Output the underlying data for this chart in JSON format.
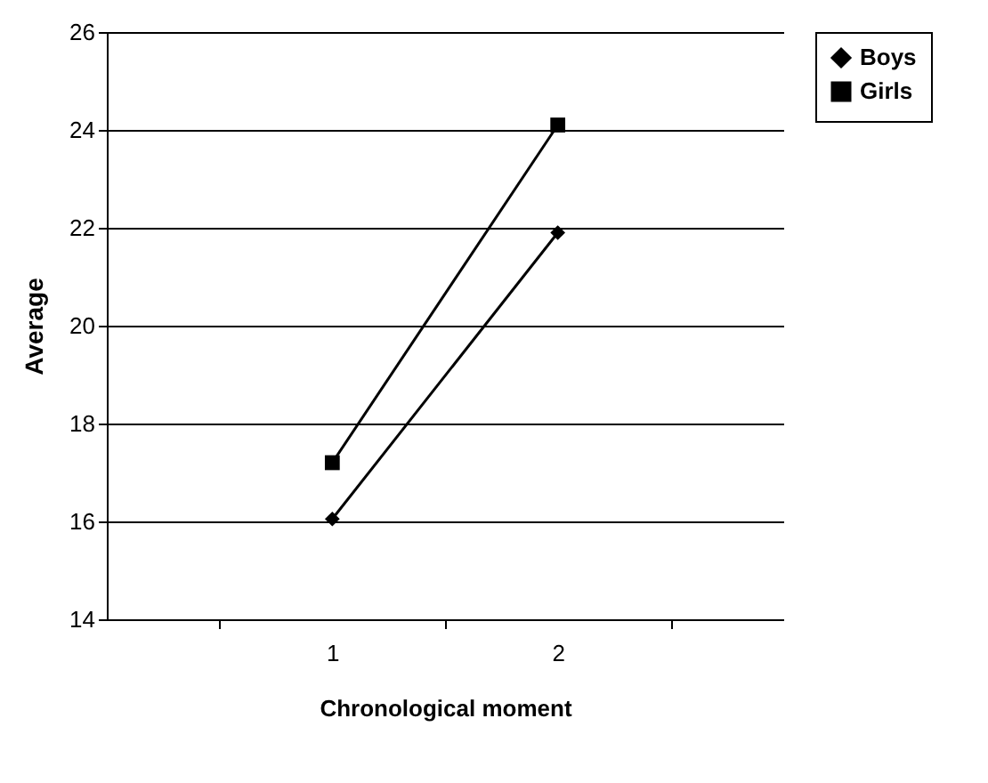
{
  "chart_data": {
    "type": "line",
    "xlabel": "Chronological moment",
    "ylabel": "Average",
    "categories": [
      "1",
      "2"
    ],
    "series": [
      {
        "name": "Boys",
        "color": "#000000",
        "marker": "diamond",
        "values": [
          16.05,
          21.9
        ]
      },
      {
        "name": "Girls",
        "color": "#000000",
        "marker": "square",
        "values": [
          17.2,
          24.1
        ]
      }
    ],
    "ylim": [
      14,
      26
    ],
    "yticks": [
      14,
      16,
      18,
      20,
      22,
      24,
      26
    ],
    "grid": "y",
    "legend": "right"
  }
}
